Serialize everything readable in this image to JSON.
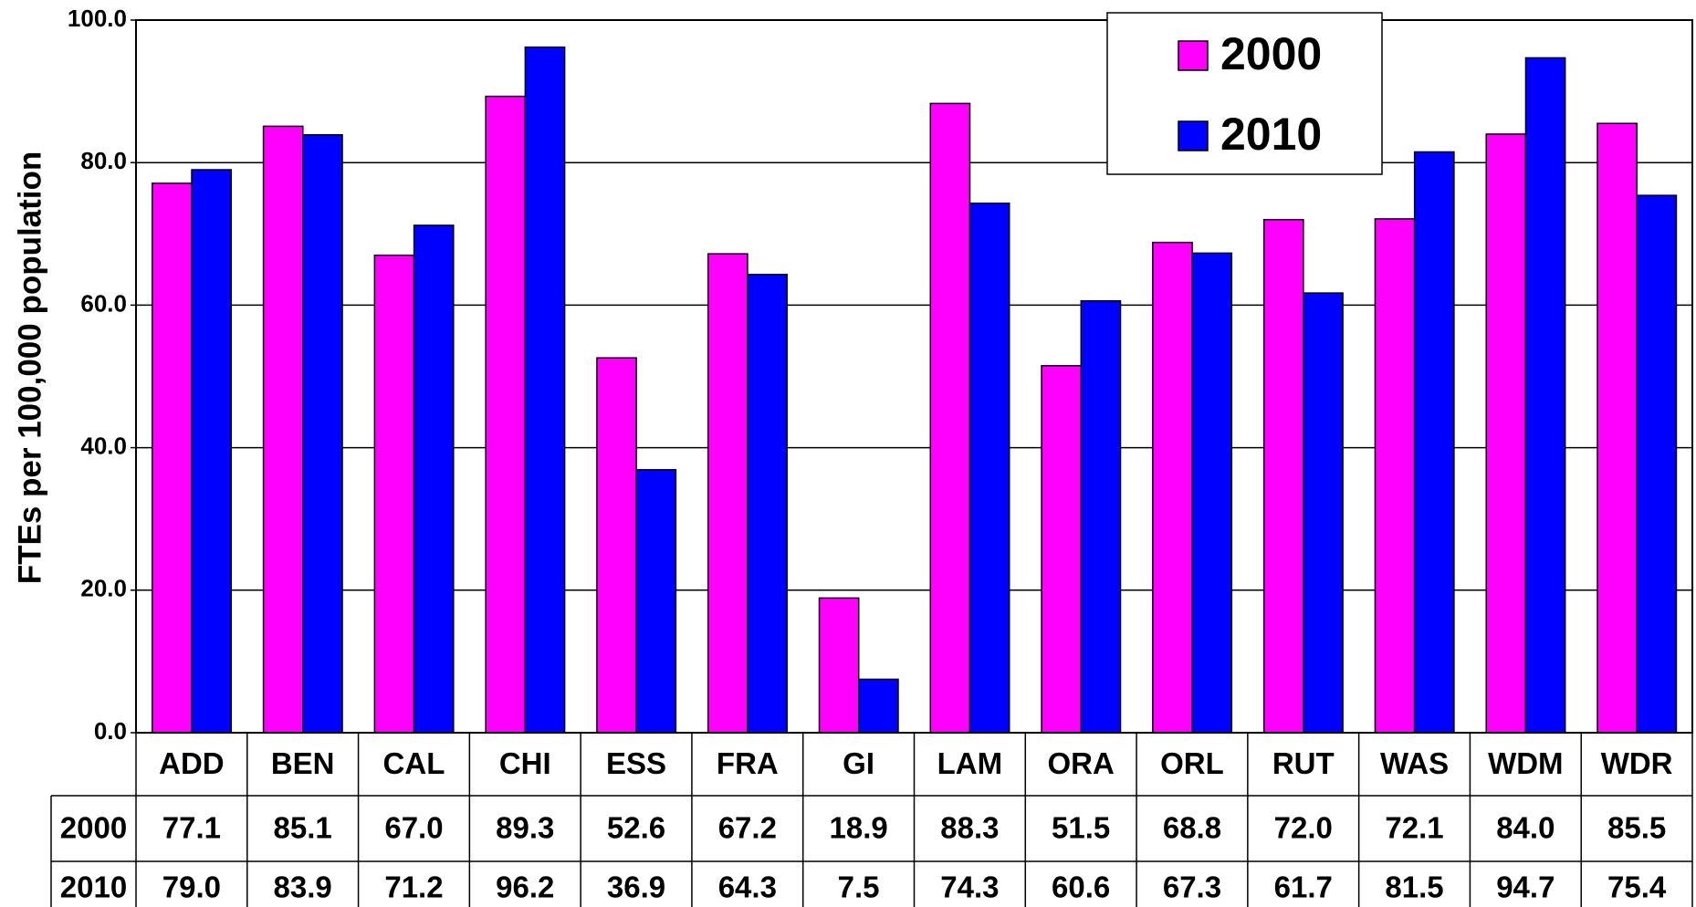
{
  "chart_data": {
    "type": "bar",
    "ylabel": "FTEs per 100,000 population",
    "categories": [
      "ADD",
      "BEN",
      "CAL",
      "CHI",
      "ESS",
      "FRA",
      "GI",
      "LAM",
      "ORA",
      "ORL",
      "RUT",
      "WAS",
      "WDM",
      "WDR"
    ],
    "series": [
      {
        "name": "2000",
        "color": "#ff00ff",
        "values": [
          77.1,
          85.1,
          67,
          89.3,
          52.6,
          67.2,
          18.9,
          88.3,
          51.5,
          68.8,
          72,
          72.1,
          84,
          85.5
        ],
        "value_labels": [
          "77.1",
          "85.1",
          "67.0",
          "89.3",
          "52.6",
          "67.2",
          "18.9",
          "88.3",
          "51.5",
          "68.8",
          "72.0",
          "72.1",
          "84.0",
          "85.5"
        ]
      },
      {
        "name": "2010",
        "color": "#0000ff",
        "values": [
          79,
          83.9,
          71.2,
          96.2,
          36.9,
          64.3,
          7.5,
          74.3,
          60.6,
          67.3,
          61.7,
          81.5,
          94.7,
          75.4
        ],
        "value_labels": [
          "79.0",
          "83.9",
          "71.2",
          "96.2",
          "36.9",
          "64.3",
          "7.5",
          "74.3",
          "60.6",
          "67.3",
          "61.7",
          "81.5",
          "94.7",
          "75.4"
        ]
      }
    ],
    "ylim": [
      0,
      100
    ],
    "yticks": [
      {
        "value": 0,
        "label": "0.0"
      },
      {
        "value": 20,
        "label": "20.0"
      },
      {
        "value": 40,
        "label": "40.0"
      },
      {
        "value": 60,
        "label": "60.0"
      },
      {
        "value": 80,
        "label": "80.0"
      },
      {
        "value": 100,
        "label": "100.0"
      }
    ],
    "grid": true,
    "legend": "upper right"
  }
}
